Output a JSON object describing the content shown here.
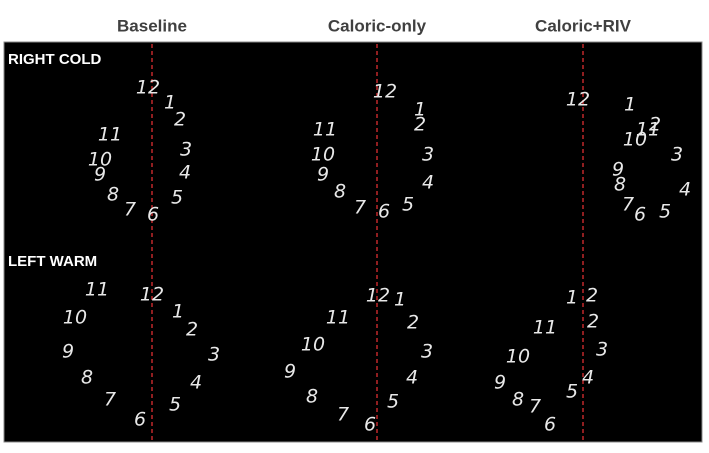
{
  "headers": [
    "Baseline",
    "Caloric-only",
    "Caloric+RIV"
  ],
  "rows": [
    {
      "label": "RIGHT COLD",
      "panels": [
        [
          "12",
          "1",
          "2",
          "3",
          "4",
          "5",
          "6",
          "7",
          "8",
          "9",
          "10",
          "11"
        ],
        [
          "12",
          "1",
          "2",
          "3",
          "4",
          "5",
          "6",
          "7",
          "8",
          "9",
          "10",
          "11"
        ],
        [
          "12",
          "1",
          "2",
          "3",
          "4",
          "5",
          "6",
          "7",
          "8",
          "9",
          "10",
          "11"
        ]
      ]
    },
    {
      "label": "LEFT WARM",
      "panels": [
        [
          "12",
          "1",
          "2",
          "3",
          "4",
          "5",
          "6",
          "7",
          "8",
          "9",
          "10",
          "11"
        ],
        [
          "12",
          "1",
          "2",
          "3",
          "4",
          "5",
          "6",
          "7",
          "8",
          "9",
          "10",
          "11"
        ],
        [
          "2",
          "2",
          "3",
          "4",
          "5",
          "6",
          "7",
          "8",
          "9",
          "10",
          "11",
          "1"
        ]
      ]
    }
  ]
}
